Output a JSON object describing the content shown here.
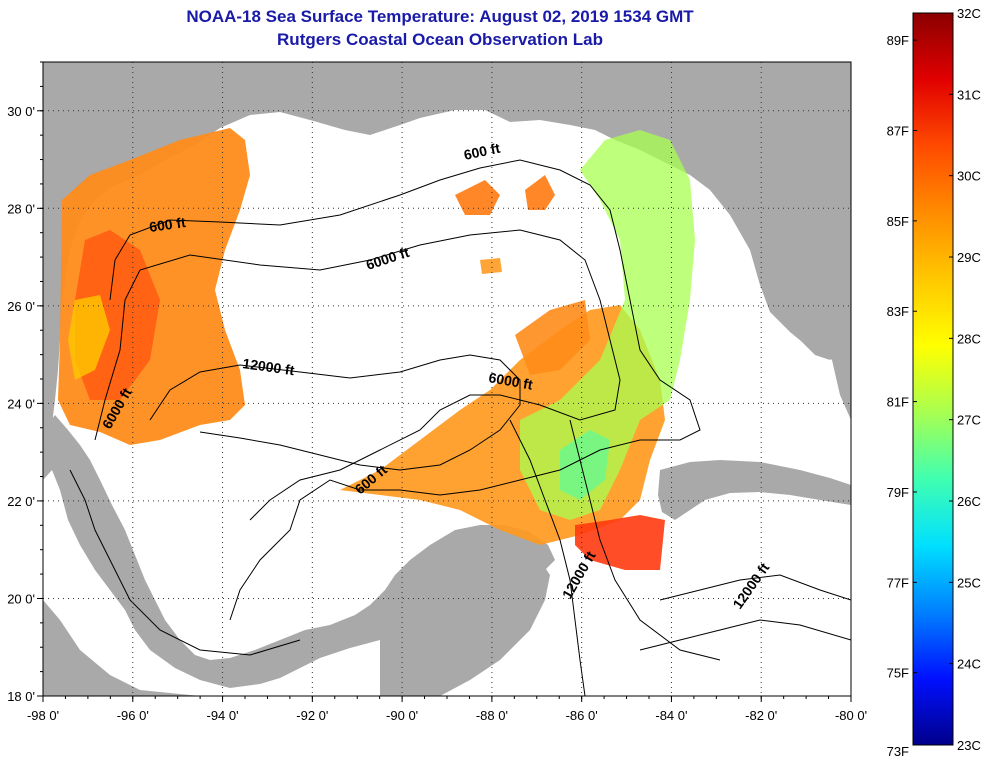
{
  "title_line1": "NOAA-18 Sea Surface Temperature:  August 02, 2019 1534 GMT",
  "title_line2": "Rutgers Coastal Ocean Observation Lab",
  "map": {
    "lon_range": [
      -98,
      -80
    ],
    "lat_range": [
      18,
      31
    ],
    "lon_ticks": [
      -98,
      -96,
      -94,
      -92,
      -90,
      -88,
      -86,
      -84,
      -82,
      -80
    ],
    "lat_ticks": [
      18,
      20,
      22,
      24,
      26,
      28,
      30
    ],
    "lon_tick_labels": [
      "-98 0'",
      "-96 0'",
      "-94 0'",
      "-92 0'",
      "-90 0'",
      "-88 0'",
      "-86 0'",
      "-84 0'",
      "-82 0'",
      "-80 0'"
    ],
    "lat_tick_labels": [
      "18 0'",
      "20 0'",
      "22 0'",
      "24 0'",
      "26 0'",
      "28 0'",
      "30 0'"
    ],
    "grid": "dotted",
    "land_color": "#a9a9a9",
    "ocean_color": "#ffffff",
    "contour_labels": [
      "600 ft",
      "600 ft",
      "600 ft",
      "6000 ft",
      "6000 ft",
      "6000 ft",
      "12000 ft",
      "12000 ft",
      "12000 ft"
    ]
  },
  "colorbar": {
    "placement": "right",
    "celsius_labels": [
      "32C",
      "31C",
      "30C",
      "29C",
      "28C",
      "27C",
      "26C",
      "25C",
      "24C",
      "23C"
    ],
    "fahrenheit_labels": [
      "89F",
      "87F",
      "85F",
      "83F",
      "81F",
      "79F",
      "77F",
      "75F",
      "73F"
    ],
    "colors_top_to_bottom": [
      "#8b0000",
      "#e10000",
      "#ff4a00",
      "#ff8c00",
      "#ffc800",
      "#ffff00",
      "#a8ff50",
      "#40ffb0",
      "#00e0ff",
      "#0080ff",
      "#0010ff",
      "#00008b"
    ]
  }
}
